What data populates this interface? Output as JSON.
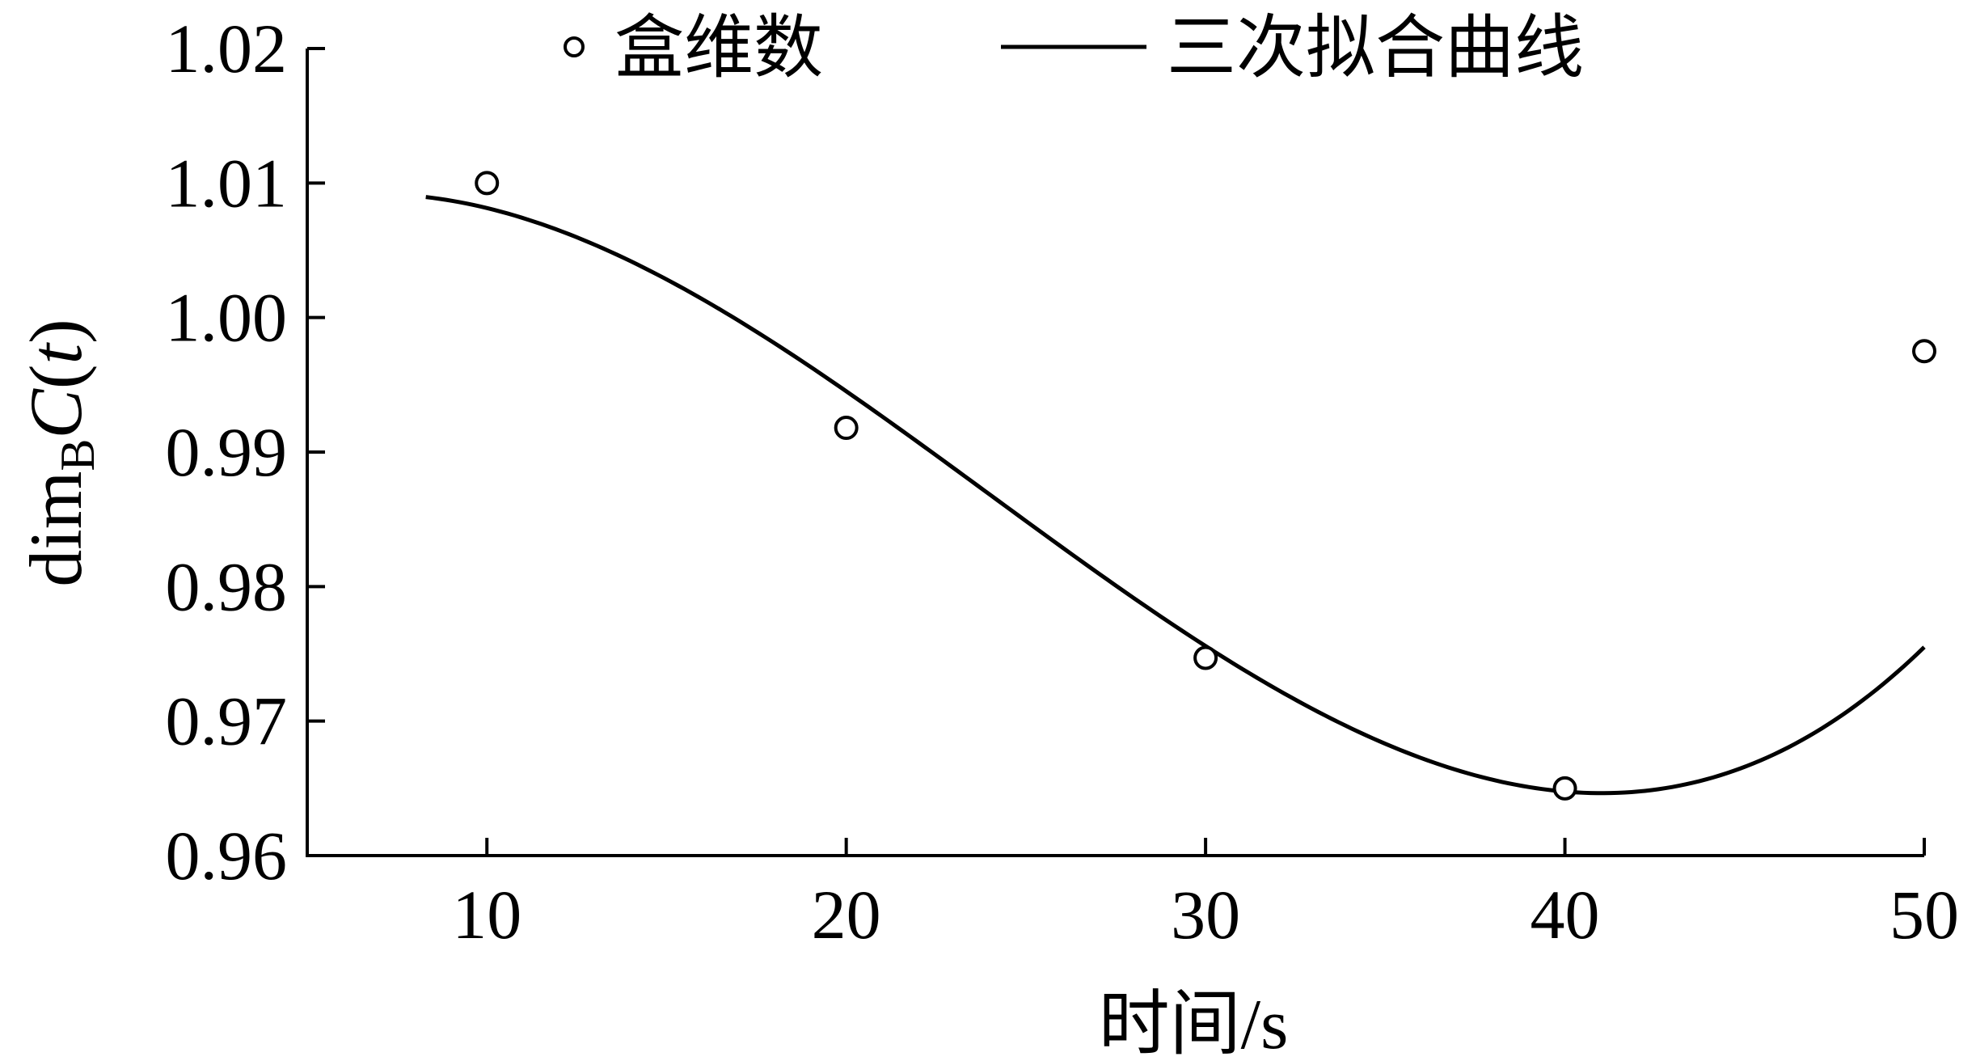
{
  "chart_data": {
    "type": "scatter",
    "xlabel": "时间/s",
    "ylabel": {
      "prefix": "dim",
      "subscript": "B",
      "symbol": "C",
      "open_paren": "(",
      "variable": "t",
      "close_paren": ")"
    },
    "xlim": [
      5,
      50
    ],
    "ylim": [
      0.96,
      1.02
    ],
    "x_ticks": [
      {
        "value": 10,
        "label": "10"
      },
      {
        "value": 20,
        "label": "20"
      },
      {
        "value": 30,
        "label": "30"
      },
      {
        "value": 40,
        "label": "40"
      },
      {
        "value": 50,
        "label": "50"
      }
    ],
    "y_ticks": [
      {
        "value": 0.96,
        "label": "0.96"
      },
      {
        "value": 0.97,
        "label": "0.97"
      },
      {
        "value": 0.98,
        "label": "0.98"
      },
      {
        "value": 0.99,
        "label": "0.99"
      },
      {
        "value": 1.0,
        "label": "1.00"
      },
      {
        "value": 1.01,
        "label": "1.01"
      },
      {
        "value": 1.02,
        "label": "1.02"
      }
    ],
    "grid": false,
    "legend_position": "top",
    "series": [
      {
        "name": "盒维数",
        "kind": "points",
        "marker": "open-circle",
        "x": [
          10,
          20,
          30,
          40,
          50
        ],
        "y": [
          1.01,
          0.9918,
          0.9747,
          0.965,
          0.9975
        ]
      },
      {
        "name": "三次拟合曲线",
        "kind": "line",
        "fit": "cubic",
        "x_range": [
          8.3,
          50
        ],
        "coefficients": [
          1.003,
          0.0019,
          -0.000161,
          2.24e-06
        ]
      }
    ],
    "colors": {
      "ink": "#000000",
      "background": "#ffffff"
    }
  }
}
